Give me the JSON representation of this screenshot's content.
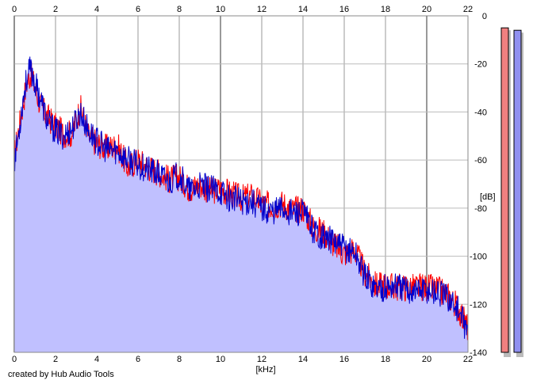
{
  "credit": "created by Hub Audio Tools",
  "chart_data": {
    "type": "area",
    "title": "",
    "xlabel": "[kHz]",
    "ylabel": "[dB]",
    "xlim": [
      0,
      22
    ],
    "ylim": [
      -140,
      0
    ],
    "x_ticks": [
      "0",
      "2",
      "4",
      "6",
      "8",
      "10",
      "12",
      "14",
      "16",
      "18",
      "20",
      "22"
    ],
    "y_ticks": [
      "0",
      "-20",
      "-40",
      "-60",
      "-80",
      "-100",
      "-120",
      "-140"
    ],
    "grid": true,
    "colors": {
      "fill": "#c0c0ff",
      "red_series": "#ff0000",
      "blue_series": "#0000cc",
      "meter_left": "#f08080",
      "meter_right": "#9090f0"
    },
    "series": [
      {
        "x": [
          0,
          0.2,
          0.4,
          0.6,
          0.8,
          1.0,
          1.3,
          1.6,
          2.0,
          2.4,
          2.8,
          3.2,
          3.6,
          4.0,
          4.5,
          5.0,
          5.5,
          6.0,
          6.5,
          7.0,
          7.5,
          8.0,
          8.5,
          9.0,
          9.5,
          10.0,
          10.5,
          11.0,
          11.5,
          12.0,
          12.5,
          13.0,
          13.5,
          14.0,
          14.5,
          15.0,
          15.5,
          16.0,
          16.5,
          17.0,
          17.5,
          18.0,
          18.5,
          19.0,
          19.5,
          20.0,
          20.5,
          21.0,
          21.5,
          22.0
        ],
        "values": [
          -58,
          -48,
          -38,
          -28,
          -24,
          -30,
          -38,
          -42,
          -46,
          -49,
          -49,
          -38,
          -50,
          -53,
          -55,
          -54,
          -63,
          -60,
          -63,
          -65,
          -68,
          -67,
          -72,
          -70,
          -73,
          -72,
          -74,
          -76,
          -75,
          -78,
          -79,
          -78,
          -81,
          -80,
          -88,
          -90,
          -95,
          -99,
          -97,
          -107,
          -112,
          -112,
          -113,
          -113,
          -113,
          -113,
          -114,
          -116,
          -121,
          -130
        ]
      },
      {
        "x": [
          0,
          0.2,
          0.4,
          0.6,
          0.8,
          1.0,
          1.3,
          1.6,
          2.0,
          2.4,
          2.8,
          3.2,
          3.6,
          4.0,
          4.5,
          5.0,
          5.5,
          6.0,
          6.5,
          7.0,
          7.5,
          8.0,
          8.5,
          9.0,
          9.5,
          10.0,
          10.5,
          11.0,
          11.5,
          12.0,
          12.5,
          13.0,
          13.5,
          14.0,
          14.5,
          15.0,
          15.5,
          16.0,
          16.5,
          17.0,
          17.5,
          18.0,
          18.5,
          19.0,
          19.5,
          20.0,
          20.5,
          21.0,
          21.5,
          22.0
        ],
        "values": [
          -60,
          -50,
          -36,
          -26,
          -22,
          -28,
          -35,
          -44,
          -48,
          -50,
          -47,
          -40,
          -48,
          -52,
          -56,
          -56,
          -60,
          -62,
          -64,
          -66,
          -69,
          -66,
          -73,
          -71,
          -72,
          -73,
          -76,
          -77,
          -77,
          -80,
          -81,
          -80,
          -82,
          -82,
          -89,
          -92,
          -94,
          -97,
          -98,
          -108,
          -113,
          -113,
          -112,
          -114,
          -114,
          -114,
          -115,
          -117,
          -122,
          -132
        ]
      }
    ],
    "level_meters": [
      {
        "value_db": -5,
        "min_db": -140,
        "max_db": 0
      },
      {
        "value_db": -6,
        "min_db": -140,
        "max_db": 0
      }
    ]
  }
}
